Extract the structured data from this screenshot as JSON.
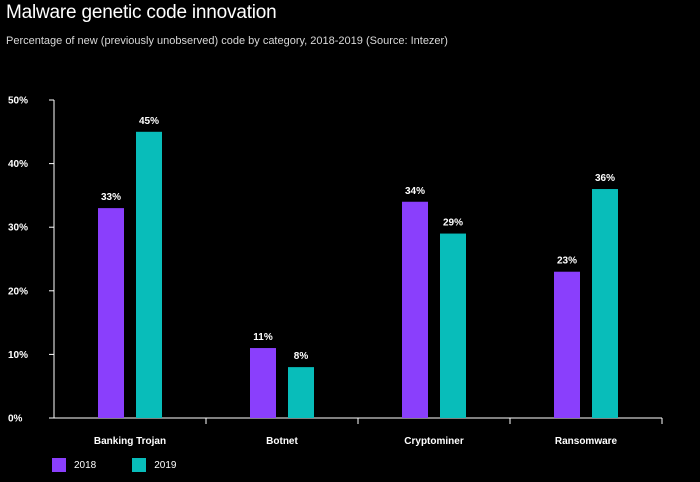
{
  "chart_data": {
    "type": "bar",
    "title": "Malware genetic code innovation",
    "subtitle": "Percentage of new (previously unobserved) code by category, 2018-2019 (Source: Intezer)",
    "categories": [
      "Banking Trojan",
      "Botnet",
      "Cryptominer",
      "Ransomware"
    ],
    "series": [
      {
        "name": "2018",
        "values": [
          33,
          11,
          34,
          23
        ],
        "labels": [
          "33%",
          "11%",
          "34%",
          "23%"
        ],
        "color": "#8a3ffc"
      },
      {
        "name": "2019",
        "values": [
          45,
          8,
          29,
          36
        ],
        "labels": [
          "45%",
          "8%",
          "29%",
          "36%"
        ],
        "color": "#08bdba"
      }
    ],
    "ylim": [
      0,
      50
    ],
    "yticks": [
      0,
      10,
      20,
      30,
      40,
      50
    ],
    "ytick_labels": [
      "0%",
      "10%",
      "20%",
      "30%",
      "40%",
      "50%"
    ],
    "xlabel": "",
    "ylabel": "",
    "legend_position": "bottom-left",
    "grid": false
  }
}
